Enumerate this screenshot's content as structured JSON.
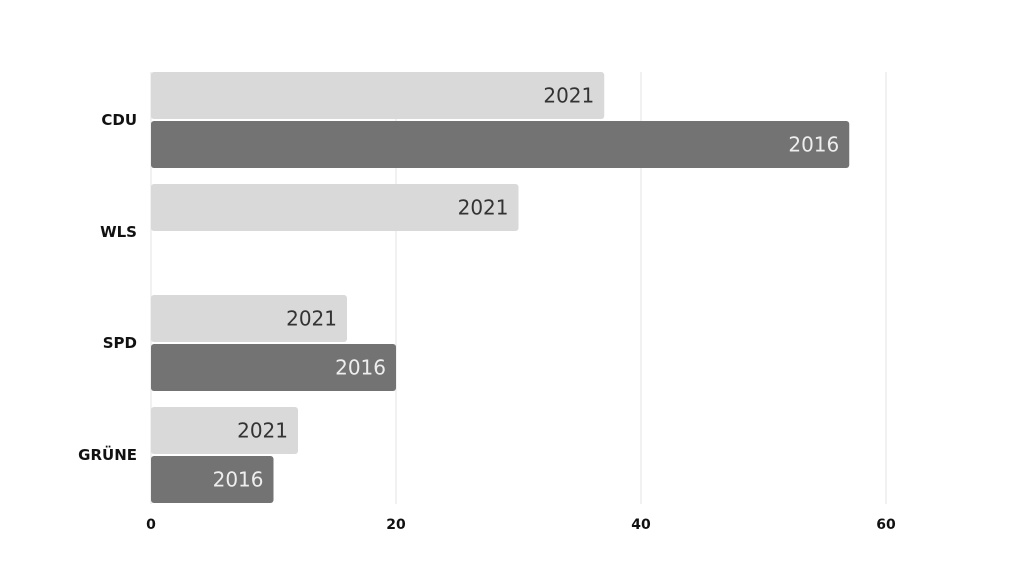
{
  "chart_data": {
    "type": "bar",
    "orientation": "horizontal",
    "categories": [
      "CDU",
      "WLS",
      "SPD",
      "GRÜNE"
    ],
    "series": [
      {
        "name": "2021",
        "values": [
          37,
          30,
          16,
          12
        ],
        "color": "#d9d9d9",
        "label_color": "#333333"
      },
      {
        "name": "2016",
        "values": [
          57,
          null,
          20,
          10
        ],
        "color": "#737373",
        "label_color": "#eeeeee"
      }
    ],
    "xlim": [
      0,
      60
    ],
    "xticks": [
      0,
      20,
      40,
      60
    ],
    "grid": true,
    "bar_labels": "series name inside bar end",
    "legend": "none"
  }
}
